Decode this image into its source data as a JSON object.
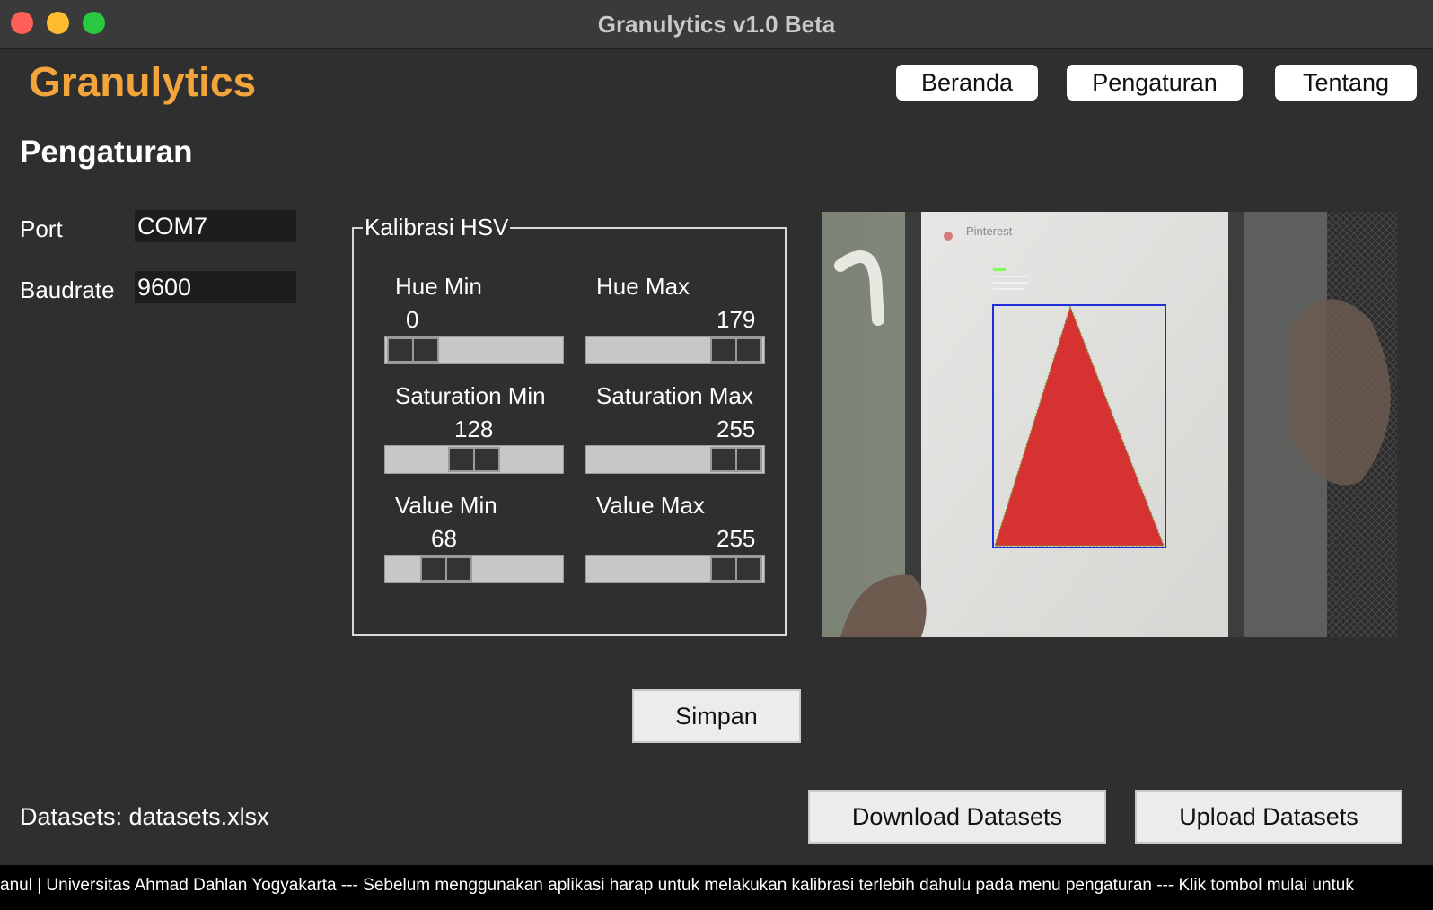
{
  "window": {
    "title": "Granulytics v1.0 Beta"
  },
  "header": {
    "brand": "Granulytics",
    "nav": [
      "Beranda",
      "Pengaturan",
      "Tentang"
    ]
  },
  "page": {
    "title": "Pengaturan"
  },
  "connection": {
    "port_label": "Port",
    "port_value": "COM7",
    "baud_label": "Baudrate",
    "baud_value": "9600"
  },
  "hsv": {
    "title": "Kalibrasi HSV",
    "sliders": [
      {
        "label": "Hue Min",
        "value": "0",
        "fraction": 0.0
      },
      {
        "label": "Hue Max",
        "value": "179",
        "fraction": 1.0
      },
      {
        "label": "Saturation Min",
        "value": "128",
        "fraction": 0.5
      },
      {
        "label": "Saturation Max",
        "value": "255",
        "fraction": 1.0
      },
      {
        "label": "Value Min",
        "value": "68",
        "fraction": 0.27
      },
      {
        "label": "Value Max",
        "value": "255",
        "fraction": 1.0
      }
    ]
  },
  "camera": {
    "overlay_text": "Pinterest"
  },
  "actions": {
    "save": "Simpan",
    "download": "Download Datasets",
    "upload": "Upload Datasets"
  },
  "datasets_label": "Datasets: datasets.xlsx",
  "ticker": "anul | Universitas Ahmad Dahlan Yogyakarta --- Sebelum menggunakan aplikasi harap untuk melakukan kalibrasi terlebih dahulu pada menu pengaturan --- Klik tombol mulai untuk"
}
